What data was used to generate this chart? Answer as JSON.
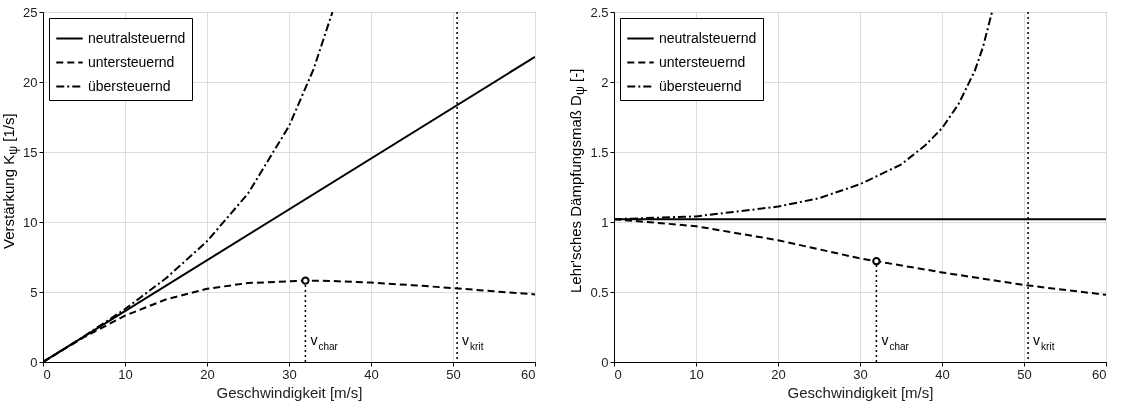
{
  "chart_data": [
    {
      "type": "line",
      "xlabel": "Geschwindigkeit [m/s]",
      "ylabel": "Verstärkung K$_{ψ}$  [1/s]",
      "xlim": [
        0,
        60
      ],
      "xticks": [
        0,
        10,
        20,
        30,
        40,
        50,
        60
      ],
      "ylim": [
        0,
        25
      ],
      "yticks": [
        0,
        5,
        10,
        15,
        20,
        25
      ],
      "grid": true,
      "legend": "top left",
      "series": [
        {
          "name": "neutralsteuernd",
          "color": "#000000",
          "line_style": "solid",
          "x": [
            0,
            60
          ],
          "values": [
            0,
            21.8
          ]
        },
        {
          "name": "untersteuernd",
          "color": "#000000",
          "line_style": "dashed",
          "x": [
            0,
            5,
            10,
            15,
            20,
            25,
            32,
            35,
            40,
            45,
            50,
            55,
            60
          ],
          "values": [
            0,
            1.77,
            3.31,
            4.47,
            5.23,
            5.64,
            5.81,
            5.79,
            5.67,
            5.49,
            5.28,
            5.05,
            4.83
          ]
        },
        {
          "name": "übersteuernd",
          "color": "#000000",
          "line_style": "dashdot",
          "x": [
            0,
            5,
            10,
            15,
            20,
            25,
            30,
            33,
            35.3
          ],
          "values": [
            0,
            1.83,
            3.78,
            5.98,
            8.62,
            12.03,
            16.85,
            20.92,
            25
          ]
        },
        {
          "type": "line",
          "color": "#000000",
          "line_style": "dotted",
          "x": [
            32,
            32
          ],
          "values": [
            0,
            5.81
          ]
        },
        {
          "type": "scatter",
          "color": "#000000",
          "marker": "circle",
          "x": [
            32
          ],
          "values": [
            5.81
          ]
        }
      ],
      "ref_lines": [
        {
          "axis": "x",
          "value": 50.5,
          "label": "v$_{krit}$",
          "line_style": "dotted",
          "color": "#000000"
        }
      ],
      "annotations": [
        {
          "text": "v$_{char}$",
          "x": 32,
          "y": 0
        }
      ]
    },
    {
      "type": "line",
      "xlabel": "Geschwindigkeit [m/s]",
      "ylabel": "Lehr'sches Dämpfungsmaß D$_{ψ}$  [-]",
      "xlim": [
        0,
        60
      ],
      "xticks": [
        0,
        10,
        20,
        30,
        40,
        50,
        60
      ],
      "ylim": [
        0,
        2.5
      ],
      "yticks": [
        0,
        0.5,
        1,
        1.5,
        2,
        2.5
      ],
      "grid": true,
      "legend": "top left",
      "series": [
        {
          "name": "neutralsteuernd",
          "color": "#000000",
          "line_style": "solid",
          "x": [
            0,
            60
          ],
          "values": [
            1.02,
            1.02
          ]
        },
        {
          "name": "untersteuernd",
          "color": "#000000",
          "line_style": "dashed",
          "x": [
            0,
            10,
            20,
            30,
            32,
            40,
            50,
            60
          ],
          "values": [
            1.02,
            0.97,
            0.87,
            0.74,
            0.72,
            0.64,
            0.55,
            0.48
          ]
        },
        {
          "name": "übersteuernd",
          "color": "#000000",
          "line_style": "dashdot",
          "x": [
            0,
            10,
            20,
            25,
            30,
            35,
            38,
            40,
            42,
            44,
            45,
            46.1
          ],
          "values": [
            1.02,
            1.04,
            1.11,
            1.17,
            1.27,
            1.41,
            1.55,
            1.67,
            1.84,
            2.08,
            2.25,
            2.5
          ]
        },
        {
          "type": "line",
          "color": "#000000",
          "line_style": "dotted",
          "x": [
            32,
            32
          ],
          "values": [
            0,
            0.72
          ]
        },
        {
          "type": "scatter",
          "color": "#000000",
          "marker": "circle",
          "x": [
            32
          ],
          "values": [
            0.72
          ]
        }
      ],
      "ref_lines": [
        {
          "axis": "x",
          "value": 50.5,
          "label": "v$_{krit}$",
          "line_style": "dotted",
          "color": "#000000"
        }
      ],
      "annotations": [
        {
          "text": "v$_{char}$",
          "x": 32,
          "y": 0
        }
      ]
    }
  ]
}
